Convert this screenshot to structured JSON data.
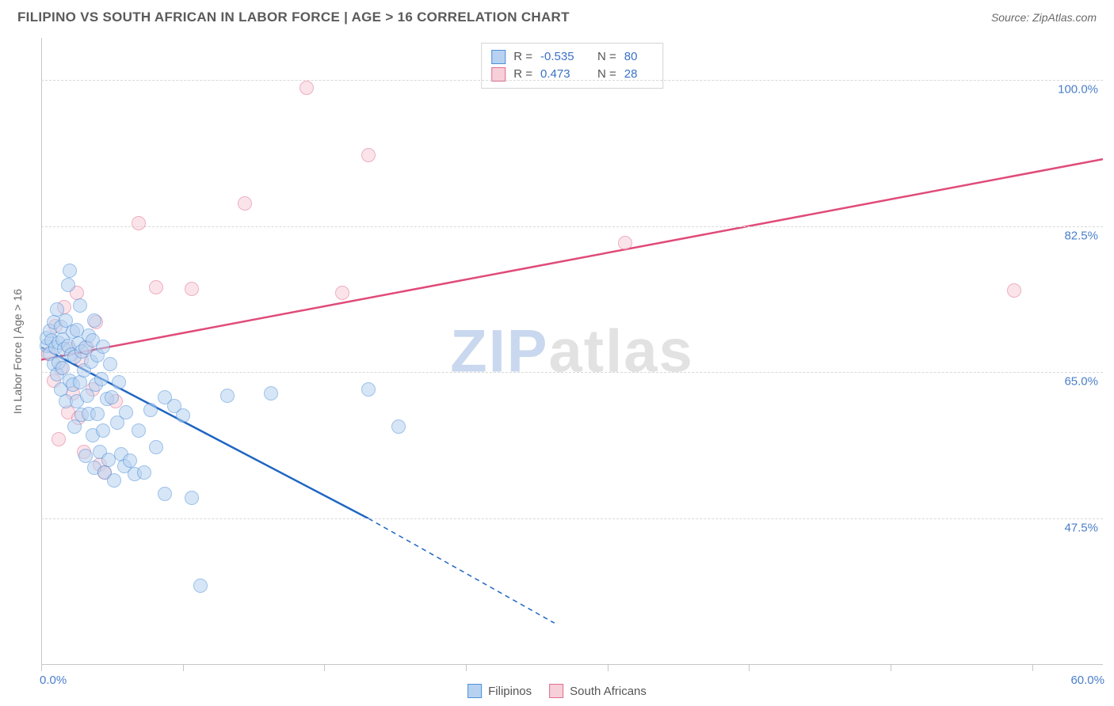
{
  "title": "FILIPINO VS SOUTH AFRICAN IN LABOR FORCE | AGE > 16 CORRELATION CHART",
  "source_label": "Source: ZipAtlas.com",
  "watermark": {
    "part1": "ZIP",
    "part2": "atlas"
  },
  "y_axis_title": "In Labor Force | Age > 16",
  "chart": {
    "type": "scatter",
    "background_color": "#ffffff",
    "grid_color": "#d8d8d8",
    "axis_color": "#c6c6c6",
    "xlim": [
      0,
      60
    ],
    "ylim": [
      30,
      105
    ],
    "x_ticks": [
      0,
      8,
      16,
      24,
      32,
      40,
      48,
      56
    ],
    "x_min_label": "0.0%",
    "x_max_label": "60.0%",
    "y_grid": [
      {
        "v": 47.5,
        "label": "47.5%"
      },
      {
        "v": 65.0,
        "label": "65.0%"
      },
      {
        "v": 82.5,
        "label": "82.5%"
      },
      {
        "v": 100.0,
        "label": "100.0%"
      }
    ],
    "tick_label_color": "#4a7ec9",
    "tick_label_fontsize": 15,
    "point_radius": 9,
    "point_opacity": 0.55,
    "series": {
      "filipinos": {
        "label": "Filipinos",
        "fill": "#b7d2f0",
        "stroke": "#4d8fd9",
        "trend_color": "#1e66c2",
        "trend_width": 2.5,
        "R": "-0.535",
        "N": "80",
        "trend": {
          "x1": 0,
          "y1": 68,
          "x2_solid": 18.5,
          "y2_solid": 47.5,
          "x2_dash": 29,
          "y2_dash": 35
        },
        "points": [
          [
            0.3,
            68.2
          ],
          [
            0.3,
            69.1
          ],
          [
            0.5,
            70.0
          ],
          [
            0.5,
            67.2
          ],
          [
            0.6,
            68.8
          ],
          [
            0.7,
            71.0
          ],
          [
            0.7,
            66.0
          ],
          [
            0.8,
            68.0
          ],
          [
            0.9,
            64.8
          ],
          [
            0.9,
            72.5
          ],
          [
            1.0,
            68.5
          ],
          [
            1.0,
            66.2
          ],
          [
            1.1,
            63.0
          ],
          [
            1.1,
            70.4
          ],
          [
            1.2,
            68.9
          ],
          [
            1.2,
            65.5
          ],
          [
            1.3,
            67.8
          ],
          [
            1.4,
            61.5
          ],
          [
            1.4,
            71.2
          ],
          [
            1.5,
            68.2
          ],
          [
            1.5,
            75.5
          ],
          [
            1.6,
            64.0
          ],
          [
            1.6,
            77.2
          ],
          [
            1.7,
            67.1
          ],
          [
            1.8,
            63.5
          ],
          [
            1.8,
            69.9
          ],
          [
            1.9,
            58.5
          ],
          [
            1.9,
            66.8
          ],
          [
            2.0,
            61.5
          ],
          [
            2.0,
            70.1
          ],
          [
            2.1,
            68.4
          ],
          [
            2.2,
            63.8
          ],
          [
            2.2,
            73.0
          ],
          [
            2.3,
            59.9
          ],
          [
            2.3,
            67.5
          ],
          [
            2.4,
            65.2
          ],
          [
            2.5,
            55.0
          ],
          [
            2.5,
            68.0
          ],
          [
            2.6,
            62.2
          ],
          [
            2.7,
            69.4
          ],
          [
            2.7,
            60.0
          ],
          [
            2.8,
            66.3
          ],
          [
            2.9,
            57.5
          ],
          [
            2.9,
            68.8
          ],
          [
            3.0,
            53.6
          ],
          [
            3.0,
            71.2
          ],
          [
            3.1,
            63.5
          ],
          [
            3.2,
            67.0
          ],
          [
            3.2,
            60.0
          ],
          [
            3.3,
            55.5
          ],
          [
            3.4,
            64.2
          ],
          [
            3.5,
            68.1
          ],
          [
            3.5,
            58.0
          ],
          [
            3.6,
            53.0
          ],
          [
            3.7,
            61.8
          ],
          [
            3.8,
            54.5
          ],
          [
            3.9,
            66.0
          ],
          [
            4.0,
            62.0
          ],
          [
            4.1,
            52.1
          ],
          [
            4.3,
            59.0
          ],
          [
            4.4,
            63.8
          ],
          [
            4.5,
            55.2
          ],
          [
            4.7,
            53.8
          ],
          [
            4.8,
            60.2
          ],
          [
            5.0,
            54.4
          ],
          [
            5.3,
            52.8
          ],
          [
            5.5,
            58.0
          ],
          [
            5.8,
            53.0
          ],
          [
            6.2,
            60.5
          ],
          [
            6.5,
            56.0
          ],
          [
            7.0,
            50.5
          ],
          [
            7.0,
            62.0
          ],
          [
            7.5,
            61.0
          ],
          [
            8.0,
            59.8
          ],
          [
            8.5,
            50.0
          ],
          [
            9.0,
            39.5
          ],
          [
            10.5,
            62.2
          ],
          [
            13.0,
            62.5
          ],
          [
            18.5,
            63.0
          ],
          [
            20.2,
            58.5
          ]
        ]
      },
      "south_africans": {
        "label": "South Africans",
        "fill": "#f6cfd9",
        "stroke": "#e26d8e",
        "trend_color": "#e04b78",
        "trend_width": 2.5,
        "R": "0.473",
        "N": "28",
        "trend": {
          "x1": 0,
          "y1": 66.5,
          "x2_solid": 60,
          "y2_solid": 90.5
        },
        "points": [
          [
            0.4,
            67.2
          ],
          [
            0.7,
            64.0
          ],
          [
            0.8,
            70.5
          ],
          [
            1.0,
            57.0
          ],
          [
            1.1,
            65.5
          ],
          [
            1.3,
            72.8
          ],
          [
            1.5,
            60.2
          ],
          [
            1.6,
            67.8
          ],
          [
            1.8,
            62.5
          ],
          [
            2.0,
            74.5
          ],
          [
            2.1,
            59.5
          ],
          [
            2.3,
            66.5
          ],
          [
            2.4,
            55.5
          ],
          [
            2.6,
            68.0
          ],
          [
            2.9,
            63.0
          ],
          [
            3.1,
            71.0
          ],
          [
            3.3,
            54.0
          ],
          [
            3.6,
            53.0
          ],
          [
            4.2,
            61.5
          ],
          [
            5.5,
            82.8
          ],
          [
            6.5,
            75.2
          ],
          [
            8.5,
            75.0
          ],
          [
            11.5,
            85.2
          ],
          [
            15.0,
            99.0
          ],
          [
            17.0,
            74.5
          ],
          [
            18.5,
            91.0
          ],
          [
            33.0,
            80.5
          ],
          [
            55.0,
            74.8
          ]
        ]
      }
    }
  },
  "legend_top": [
    {
      "swatch_fill": "#b7d2f0",
      "swatch_stroke": "#4d8fd9",
      "r_label": "R =",
      "r_val": "-0.535",
      "n_label": "N =",
      "n_val": "80"
    },
    {
      "swatch_fill": "#f6cfd9",
      "swatch_stroke": "#e26d8e",
      "r_label": "R =",
      "r_val": "0.473",
      "n_label": "N =",
      "n_val": "28"
    }
  ],
  "legend_bottom": [
    {
      "swatch_fill": "#b7d2f0",
      "swatch_stroke": "#4d8fd9",
      "label": "Filipinos"
    },
    {
      "swatch_fill": "#f6cfd9",
      "swatch_stroke": "#e26d8e",
      "label": "South Africans"
    }
  ]
}
